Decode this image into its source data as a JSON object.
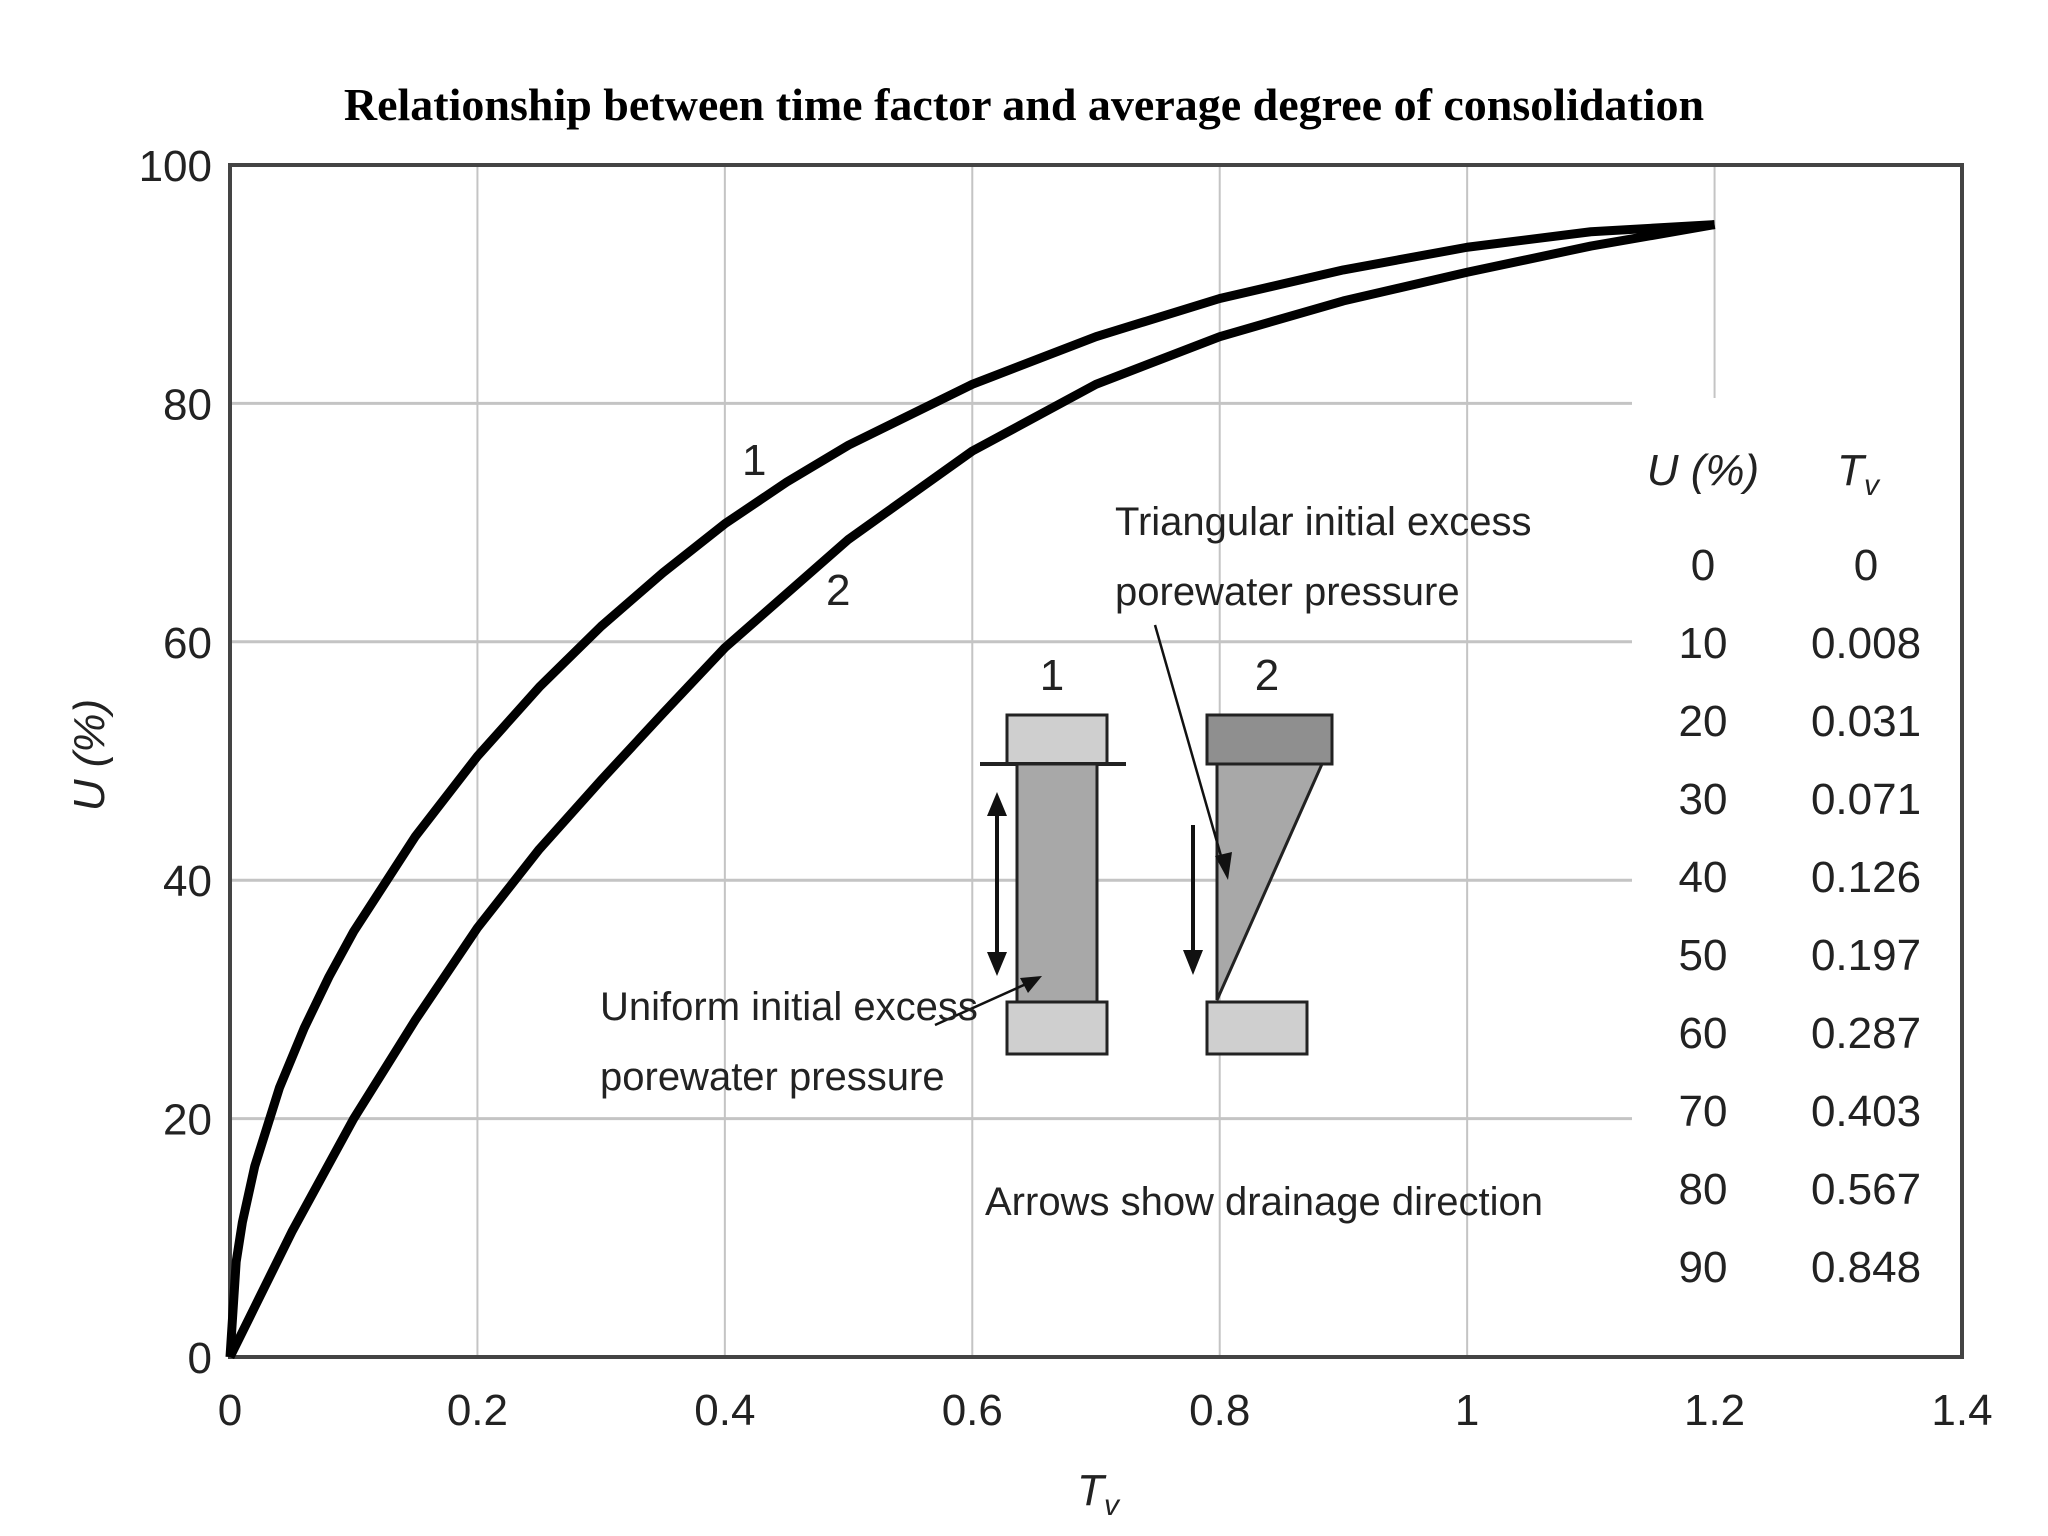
{
  "chart_data": {
    "type": "line",
    "title": "Relationship between time factor and average degree of consolidation",
    "xlabel": "T_v",
    "ylabel": "U (%)",
    "xlim": [
      0,
      1.4
    ],
    "ylim": [
      0,
      100
    ],
    "xticks": [
      "0",
      "0.2",
      "0.4",
      "0.6",
      "0.8",
      "1",
      "1.2",
      "1.4"
    ],
    "yticks": [
      "0",
      "20",
      "40",
      "60",
      "80",
      "100"
    ],
    "grid": true,
    "series": [
      {
        "name": "1",
        "x": [
          0,
          0.005,
          0.01,
          0.02,
          0.04,
          0.06,
          0.08,
          0.1,
          0.15,
          0.2,
          0.25,
          0.3,
          0.35,
          0.4,
          0.45,
          0.5,
          0.6,
          0.7,
          0.8,
          0.9,
          1.0,
          1.1,
          1.2
        ],
        "y": [
          0,
          8,
          11.3,
          16,
          22.6,
          27.6,
          31.9,
          35.7,
          43.7,
          50.4,
          56.2,
          61.3,
          65.8,
          69.9,
          73.4,
          76.5,
          81.6,
          85.6,
          88.8,
          91.2,
          93.1,
          94.4,
          95
        ]
      },
      {
        "name": "2",
        "x": [
          0,
          0.01,
          0.02,
          0.05,
          0.1,
          0.15,
          0.2,
          0.25,
          0.3,
          0.35,
          0.4,
          0.5,
          0.6,
          0.7,
          0.8,
          0.9,
          1.0,
          1.1,
          1.2
        ],
        "y": [
          0,
          2.1,
          4.2,
          10.5,
          20,
          28.3,
          36,
          42.6,
          48.4,
          54,
          59.5,
          68.6,
          76,
          81.6,
          85.6,
          88.6,
          91,
          93.2,
          95
        ]
      }
    ],
    "table": {
      "headers": [
        "U (%)",
        "T_v"
      ],
      "rows": [
        [
          "0",
          "0"
        ],
        [
          "10",
          "0.008"
        ],
        [
          "20",
          "0.031"
        ],
        [
          "30",
          "0.071"
        ],
        [
          "40",
          "0.126"
        ],
        [
          "50",
          "0.197"
        ],
        [
          "60",
          "0.287"
        ],
        [
          "70",
          "0.403"
        ],
        [
          "80",
          "0.567"
        ],
        [
          "90",
          "0.848"
        ]
      ]
    },
    "annotations": {
      "curve_label_1": "1",
      "curve_label_2": "2",
      "sample_label_1": "1",
      "sample_label_2": "2",
      "triangular_line1": "Triangular initial excess",
      "triangular_line2": "porewater pressure",
      "uniform_line1": "Uniform initial excess",
      "uniform_line2": "porewater pressure",
      "drainage_note": "Arrows show drainage direction"
    }
  }
}
